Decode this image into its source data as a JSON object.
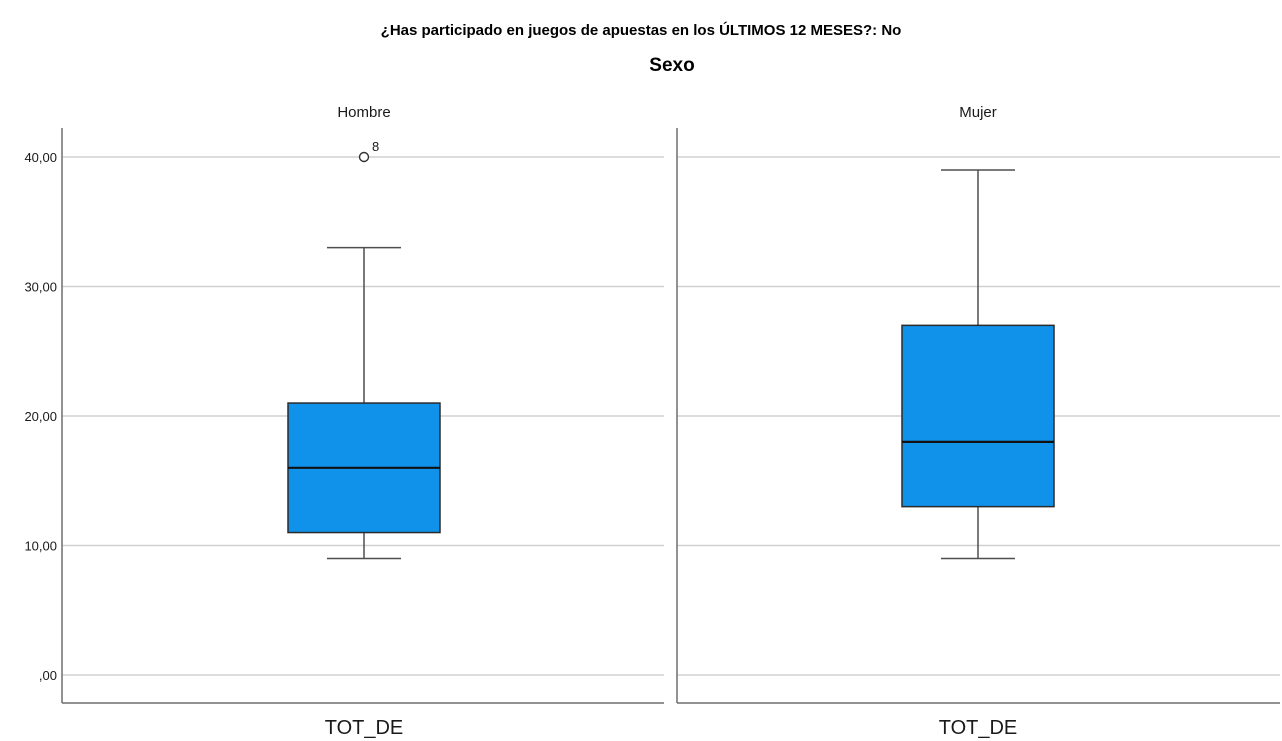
{
  "chart_data": {
    "type": "boxplot",
    "title": "¿Has participado en juegos de apuestas en los ÚLTIMOS 12 MESES?: No",
    "subtitle": "Sexo",
    "ylim": [
      0,
      40
    ],
    "y_ticks": [
      0,
      10,
      20,
      30,
      40
    ],
    "y_tick_labels": [
      ",00",
      "10,00",
      "20,00",
      "30,00",
      "40,00"
    ],
    "grid": true,
    "box_color": "#1192ea",
    "panels": [
      {
        "label": "Hombre",
        "category": "TOT_DE",
        "whisker_low": 9,
        "q1": 11,
        "median": 16,
        "q3": 21,
        "whisker_high": 33,
        "outliers": [
          {
            "value": 40,
            "label": "8"
          }
        ]
      },
      {
        "label": "Mujer",
        "category": "TOT_DE",
        "whisker_low": 9,
        "q1": 13,
        "median": 18,
        "q3": 27,
        "whisker_high": 39,
        "outliers": []
      }
    ]
  }
}
